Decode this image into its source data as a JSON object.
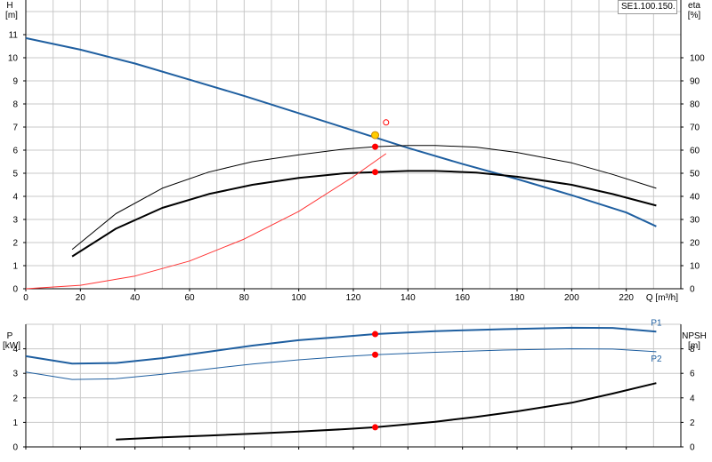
{
  "model_label": "SE1.100.150.",
  "colors": {
    "blue": "#1f5fa0",
    "black": "#000000",
    "red_curve": "#ff3333",
    "red_point": "#ff0000",
    "yellow_point": "#ffcc00",
    "grid": "#c8c8c8"
  },
  "chart_data": [
    {
      "type": "line",
      "title": "",
      "xlabel": "Q [m³/h]",
      "xlim": [
        0,
        240
      ],
      "x_ticks": [
        0,
        20,
        40,
        60,
        80,
        100,
        120,
        140,
        160,
        180,
        200,
        220
      ],
      "ylabel_left": {
        "name": "H",
        "unit": "[m]"
      },
      "ylim_left": [
        0,
        12.5
      ],
      "y_ticks_left": [
        0,
        1,
        2,
        3,
        4,
        5,
        6,
        7,
        8,
        9,
        10,
        11
      ],
      "ylabel_right": {
        "name": "eta",
        "unit": "[%]"
      },
      "ylim_right": [
        0,
        125
      ],
      "y_ticks_right": [
        0,
        10,
        20,
        30,
        40,
        50,
        60,
        70,
        80,
        90,
        100
      ],
      "grid": true,
      "series": [
        {
          "axis": "left",
          "color": "blue",
          "width": 2,
          "x": [
            0,
            20,
            40,
            60,
            80,
            100,
            120,
            140,
            160,
            180,
            200,
            220,
            231
          ],
          "y": [
            10.85,
            10.35,
            9.75,
            9.05,
            8.35,
            7.6,
            6.85,
            6.1,
            5.4,
            4.75,
            4.05,
            3.3,
            2.7
          ]
        },
        {
          "axis": "right",
          "color": "black",
          "width": 1,
          "x": [
            17,
            33,
            50,
            67,
            83,
            100,
            117,
            128,
            140,
            150,
            165,
            180,
            200,
            215,
            231
          ],
          "y": [
            17,
            32.5,
            43.5,
            50.5,
            55,
            58,
            60.5,
            61.5,
            62,
            62,
            61.3,
            59,
            54.5,
            49.5,
            43.5
          ]
        },
        {
          "axis": "right",
          "color": "black",
          "width": 2,
          "x": [
            17,
            33,
            50,
            67,
            83,
            100,
            117,
            128,
            140,
            150,
            165,
            180,
            200,
            215,
            231
          ],
          "y": [
            14,
            26,
            35,
            41,
            45,
            48,
            50,
            50.5,
            51,
            51,
            50.3,
            48.5,
            45,
            41,
            36
          ]
        },
        {
          "axis": "left",
          "color": "red_curve",
          "width": 1,
          "x": [
            0,
            20,
            40,
            60,
            80,
            100,
            120,
            132
          ],
          "y": [
            0,
            0.15,
            0.55,
            1.2,
            2.15,
            3.35,
            4.85,
            5.85
          ]
        }
      ],
      "points": [
        {
          "axis": "left",
          "x": 128,
          "y": 6.65,
          "color": "yellow_point",
          "stroke": "#cc8800",
          "r": 4
        },
        {
          "axis": "left",
          "x": 132,
          "y": 7.2,
          "color": "none",
          "stroke": "red_point",
          "r": 3
        },
        {
          "axis": "right",
          "x": 128,
          "y": 61.5,
          "color": "red_point",
          "stroke": "red_point",
          "r": 3
        },
        {
          "axis": "right",
          "x": 128,
          "y": 50.5,
          "color": "red_point",
          "stroke": "red_point",
          "r": 3
        }
      ]
    },
    {
      "type": "line",
      "title": "",
      "xlim": [
        0,
        240
      ],
      "x_ticks": [
        0,
        20,
        40,
        60,
        80,
        100,
        120,
        140,
        160,
        180,
        200,
        220
      ],
      "ylabel_left": {
        "name": "P",
        "unit": "[kW]"
      },
      "ylim_left": [
        0,
        5
      ],
      "y_ticks_left": [
        0,
        1,
        2,
        3,
        4
      ],
      "ylabel_right": {
        "name": "NPSH",
        "unit": "[m]"
      },
      "ylim_right": [
        0,
        10
      ],
      "y_ticks_right": [
        0,
        2,
        4,
        6,
        8
      ],
      "grid": true,
      "series": [
        {
          "axis": "left",
          "name": "P1",
          "color": "blue",
          "width": 2,
          "x": [
            0,
            17,
            33,
            50,
            67,
            83,
            100,
            117,
            128,
            150,
            175,
            200,
            215,
            231
          ],
          "y": [
            3.7,
            3.4,
            3.42,
            3.62,
            3.88,
            4.13,
            4.35,
            4.5,
            4.6,
            4.72,
            4.8,
            4.86,
            4.85,
            4.7
          ]
        },
        {
          "axis": "left",
          "name": "P2",
          "color": "blue",
          "width": 1,
          "x": [
            0,
            17,
            33,
            50,
            67,
            83,
            100,
            117,
            128,
            150,
            175,
            200,
            215,
            231
          ],
          "y": [
            3.05,
            2.75,
            2.78,
            2.96,
            3.18,
            3.38,
            3.55,
            3.69,
            3.76,
            3.86,
            3.95,
            4.0,
            3.99,
            3.88
          ]
        },
        {
          "axis": "right",
          "color": "black",
          "width": 2,
          "x": [
            33,
            50,
            67,
            83,
            100,
            117,
            128,
            150,
            165,
            180,
            200,
            215,
            231
          ],
          "y": [
            0.6,
            0.78,
            0.92,
            1.08,
            1.25,
            1.45,
            1.6,
            2.05,
            2.45,
            2.9,
            3.6,
            4.35,
            5.2
          ]
        }
      ],
      "points": [
        {
          "axis": "left",
          "x": 128,
          "y": 4.6,
          "color": "red_point",
          "stroke": "red_point",
          "r": 3
        },
        {
          "axis": "left",
          "x": 128,
          "y": 3.76,
          "color": "red_point",
          "stroke": "red_point",
          "r": 3
        },
        {
          "axis": "right",
          "x": 128,
          "y": 1.6,
          "color": "red_point",
          "stroke": "red_point",
          "r": 3
        }
      ]
    }
  ]
}
